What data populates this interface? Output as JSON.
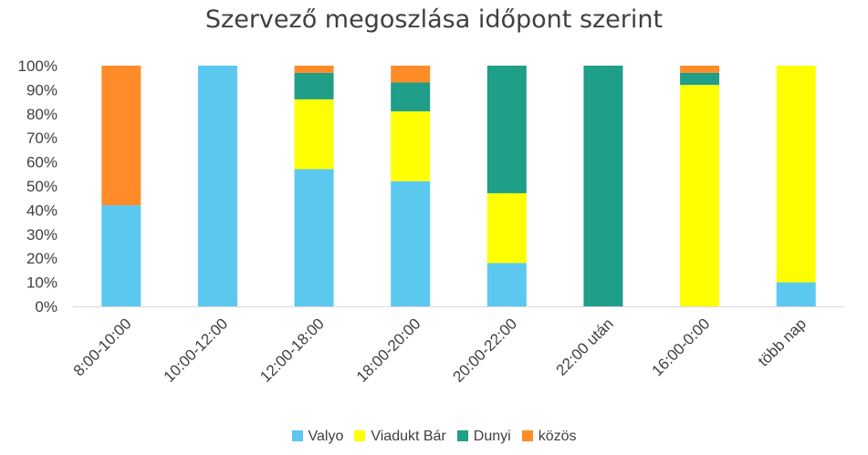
{
  "chart_data": {
    "type": "bar",
    "stacked": true,
    "title": "Szervező megoszlása időpont szerint",
    "xlabel": "",
    "ylabel": "",
    "ylim": [
      0,
      100
    ],
    "y_unit": "%",
    "y_ticks": [
      "0%",
      "10%",
      "20%",
      "30%",
      "40%",
      "50%",
      "60%",
      "70%",
      "80%",
      "90%",
      "100%"
    ],
    "grid": false,
    "legend_position": "bottom",
    "categories": [
      "8:00-10:00",
      "10:00-12:00",
      "12:00-18:00",
      "18:00-20:00",
      "20:00-22:00",
      "22:00 után",
      "16:00-0:00",
      "több nap"
    ],
    "series": [
      {
        "name": "Valyo",
        "color": "#5BC8F0",
        "values": [
          42,
          100,
          57,
          52,
          18,
          0,
          0,
          10
        ]
      },
      {
        "name": "Viadukt Bár",
        "color": "#FFFF00",
        "values": [
          0,
          0,
          29,
          29,
          29,
          0,
          92,
          90
        ]
      },
      {
        "name": "Dunyi",
        "color": "#1F9E88",
        "values": [
          0,
          0,
          11,
          12,
          53,
          100,
          5,
          0
        ]
      },
      {
        "name": "közös",
        "color": "#FF8C28",
        "values": [
          58,
          0,
          3,
          7,
          0,
          0,
          3,
          0
        ]
      }
    ]
  }
}
